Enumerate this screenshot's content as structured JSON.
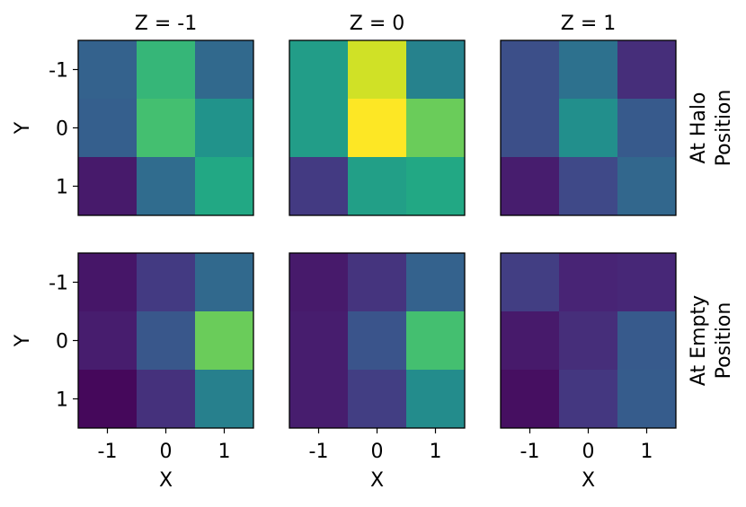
{
  "chart_data": {
    "type": "heatmap",
    "colormap": "viridis",
    "color_range": [
      0,
      1
    ],
    "grid": false,
    "columns": [
      "Z = -1",
      "Z = 0",
      "Z = 1"
    ],
    "rows": [
      "At Halo\nPosition",
      "At Empty\nPosition"
    ],
    "x_ticks": [
      "-1",
      "0",
      "1"
    ],
    "y_ticks": [
      "-1",
      "0",
      "1"
    ],
    "xlabel": "X",
    "ylabel": "Y",
    "panels": [
      [
        [
          [
            0.31,
            0.66,
            0.34
          ],
          [
            0.3,
            0.7,
            0.51
          ],
          [
            0.07,
            0.35,
            0.6
          ]
        ],
        [
          [
            0.55,
            0.93,
            0.44
          ],
          [
            0.55,
            1.0,
            0.77
          ],
          [
            0.17,
            0.56,
            0.6
          ]
        ],
        [
          [
            0.24,
            0.37,
            0.13
          ],
          [
            0.24,
            0.49,
            0.28
          ],
          [
            0.08,
            0.22,
            0.33
          ]
        ]
      ],
      [
        [
          [
            0.06,
            0.17,
            0.34
          ],
          [
            0.08,
            0.27,
            0.77
          ],
          [
            0.02,
            0.14,
            0.43
          ]
        ],
        [
          [
            0.07,
            0.15,
            0.31
          ],
          [
            0.08,
            0.26,
            0.7
          ],
          [
            0.08,
            0.18,
            0.48
          ]
        ],
        [
          [
            0.18,
            0.1,
            0.11
          ],
          [
            0.07,
            0.13,
            0.28
          ],
          [
            0.04,
            0.16,
            0.29
          ]
        ]
      ]
    ]
  }
}
